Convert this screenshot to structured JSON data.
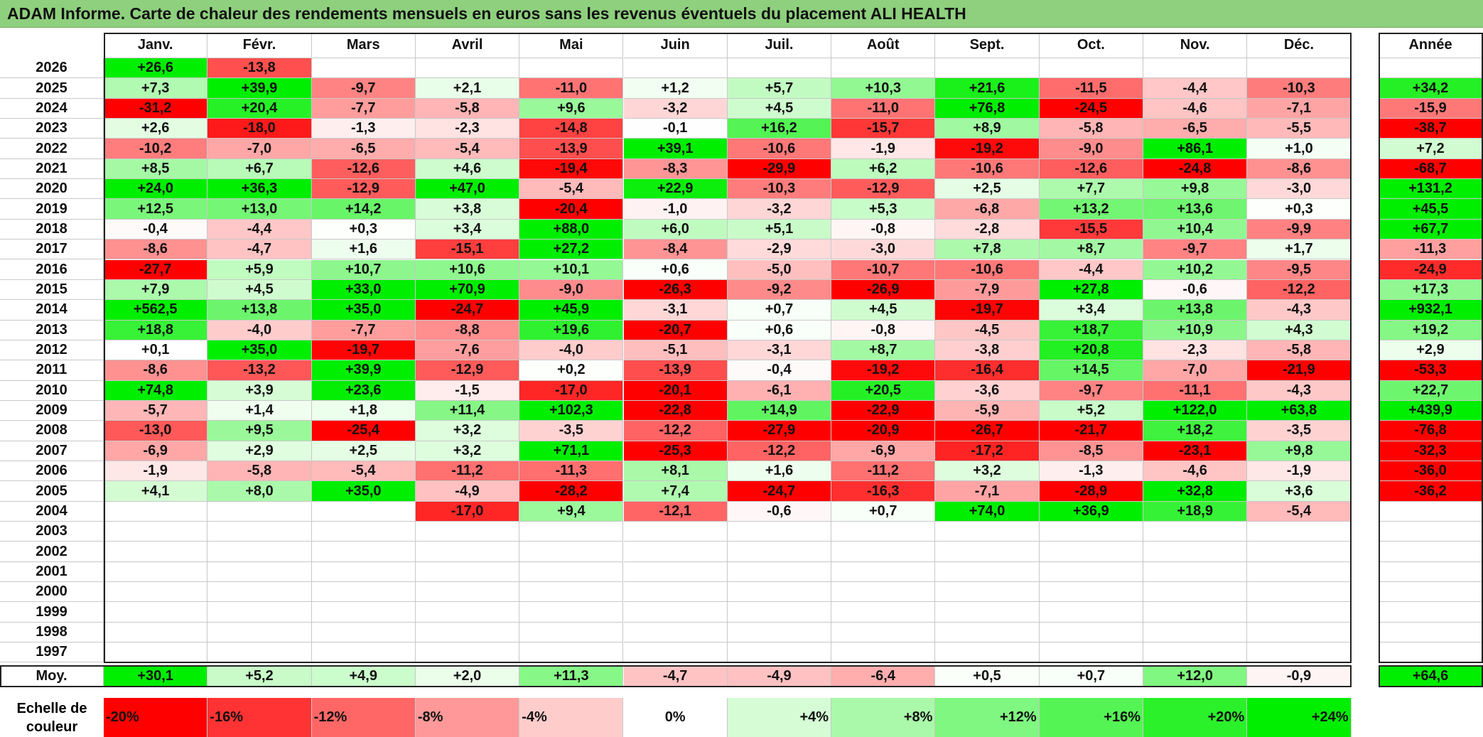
{
  "title": "ADAM Informe. Carte de chaleur des rendements mensuels en euros sans les revenus éventuels du placement ALI HEALTH",
  "chart_data": {
    "type": "heatmap",
    "columns": [
      "Janv.",
      "Févr.",
      "Mars",
      "Avril",
      "Mai",
      "Juin",
      "Juil.",
      "Août",
      "Sept.",
      "Oct.",
      "Nov.",
      "Déc."
    ],
    "annual_header": "Année",
    "rows": [
      {
        "year": "2026",
        "values": [
          "+26,6",
          "-13,8",
          "",
          "",
          "",
          "",
          "",
          "",
          "",
          "",
          "",
          ""
        ],
        "annual": ""
      },
      {
        "year": "2025",
        "values": [
          "+7,3",
          "+39,9",
          "-9,7",
          "+2,1",
          "-11,0",
          "+1,2",
          "+5,7",
          "+10,3",
          "+21,6",
          "-11,5",
          "-4,4",
          "-10,3"
        ],
        "annual": "+34,2"
      },
      {
        "year": "2024",
        "values": [
          "-31,2",
          "+20,4",
          "-7,7",
          "-5,8",
          "+9,6",
          "-3,2",
          "+4,5",
          "-11,0",
          "+76,8",
          "-24,5",
          "-4,6",
          "-7,1"
        ],
        "annual": "-15,9"
      },
      {
        "year": "2023",
        "values": [
          "+2,6",
          "-18,0",
          "-1,3",
          "-2,3",
          "-14,8",
          "-0,1",
          "+16,2",
          "-15,7",
          "+8,9",
          "-5,8",
          "-6,5",
          "-5,5"
        ],
        "annual": "-38,7"
      },
      {
        "year": "2022",
        "values": [
          "-10,2",
          "-7,0",
          "-6,5",
          "-5,4",
          "-13,9",
          "+39,1",
          "-10,6",
          "-1,9",
          "-19,2",
          "-9,0",
          "+86,1",
          "+1,0"
        ],
        "annual": "+7,2"
      },
      {
        "year": "2021",
        "values": [
          "+8,5",
          "+6,7",
          "-12,6",
          "+4,6",
          "-19,4",
          "-8,3",
          "-29,9",
          "+6,2",
          "-10,6",
          "-12,6",
          "-24,8",
          "-8,6"
        ],
        "annual": "-68,7"
      },
      {
        "year": "2020",
        "values": [
          "+24,0",
          "+36,3",
          "-12,9",
          "+47,0",
          "-5,4",
          "+22,9",
          "-10,3",
          "-12,9",
          "+2,5",
          "+7,7",
          "+9,8",
          "-3,0"
        ],
        "annual": "+131,2"
      },
      {
        "year": "2019",
        "values": [
          "+12,5",
          "+13,0",
          "+14,2",
          "+3,8",
          "-20,4",
          "-1,0",
          "-3,2",
          "+5,3",
          "-6,8",
          "+13,2",
          "+13,6",
          "+0,3"
        ],
        "annual": "+45,5"
      },
      {
        "year": "2018",
        "values": [
          "-0,4",
          "-4,4",
          "+0,3",
          "+3,4",
          "+88,0",
          "+6,0",
          "+5,1",
          "-0,8",
          "-2,8",
          "-15,5",
          "+10,4",
          "-9,9"
        ],
        "annual": "+67,7"
      },
      {
        "year": "2017",
        "values": [
          "-8,6",
          "-4,7",
          "+1,6",
          "-15,1",
          "+27,2",
          "-8,4",
          "-2,9",
          "-3,0",
          "+7,8",
          "+8,7",
          "-9,7",
          "+1,7"
        ],
        "annual": "-11,3"
      },
      {
        "year": "2016",
        "values": [
          "-27,7",
          "+5,9",
          "+10,7",
          "+10,6",
          "+10,1",
          "+0,6",
          "-5,0",
          "-10,7",
          "-10,6",
          "-4,4",
          "+10,2",
          "-9,5"
        ],
        "annual": "-24,9"
      },
      {
        "year": "2015",
        "values": [
          "+7,9",
          "+4,5",
          "+33,0",
          "+70,9",
          "-9,0",
          "-26,3",
          "-9,2",
          "-26,9",
          "-7,9",
          "+27,8",
          "-0,6",
          "-12,2"
        ],
        "annual": "+17,3"
      },
      {
        "year": "2014",
        "values": [
          "+562,5",
          "+13,8",
          "+35,0",
          "-24,7",
          "+45,9",
          "-3,1",
          "+0,7",
          "+4,5",
          "-19,7",
          "+3,4",
          "+13,8",
          "-4,3"
        ],
        "annual": "+932,1"
      },
      {
        "year": "2013",
        "values": [
          "+18,8",
          "-4,0",
          "-7,7",
          "-8,8",
          "+19,6",
          "-20,7",
          "+0,6",
          "-0,8",
          "-4,5",
          "+18,7",
          "+10,9",
          "+4,3"
        ],
        "annual": "+19,2"
      },
      {
        "year": "2012",
        "values": [
          "+0,1",
          "+35,0",
          "-19,7",
          "-7,6",
          "-4,0",
          "-5,1",
          "-3,1",
          "+8,7",
          "-3,8",
          "+20,8",
          "-2,3",
          "-5,8"
        ],
        "annual": "+2,9"
      },
      {
        "year": "2011",
        "values": [
          "-8,6",
          "-13,2",
          "+39,9",
          "-12,9",
          "+0,2",
          "-13,9",
          "-0,4",
          "-19,2",
          "-16,4",
          "+14,5",
          "-7,0",
          "-21,9"
        ],
        "annual": "-53,3"
      },
      {
        "year": "2010",
        "values": [
          "+74,8",
          "+3,9",
          "+23,6",
          "-1,5",
          "-17,0",
          "-20,1",
          "-6,1",
          "+20,5",
          "-3,6",
          "-9,7",
          "-11,1",
          "-4,3"
        ],
        "annual": "+22,7"
      },
      {
        "year": "2009",
        "values": [
          "-5,7",
          "+1,4",
          "+1,8",
          "+11,4",
          "+102,3",
          "-22,8",
          "+14,9",
          "-22,9",
          "-5,9",
          "+5,2",
          "+122,0",
          "+63,8"
        ],
        "annual": "+439,9"
      },
      {
        "year": "2008",
        "values": [
          "-13,0",
          "+9,5",
          "-25,4",
          "+3,2",
          "-3,5",
          "-12,2",
          "-27,9",
          "-20,9",
          "-26,7",
          "-21,7",
          "+18,2",
          "-3,5"
        ],
        "annual": "-76,8"
      },
      {
        "year": "2007",
        "values": [
          "-6,9",
          "+2,9",
          "+2,5",
          "+3,2",
          "+71,1",
          "-25,3",
          "-12,2",
          "-6,9",
          "-17,2",
          "-8,5",
          "-23,1",
          "+9,8"
        ],
        "annual": "-32,3"
      },
      {
        "year": "2006",
        "values": [
          "-1,9",
          "-5,8",
          "-5,4",
          "-11,2",
          "-11,3",
          "+8,1",
          "+1,6",
          "-11,2",
          "+3,2",
          "-1,3",
          "-4,6",
          "-1,9"
        ],
        "annual": "-36,0"
      },
      {
        "year": "2005",
        "values": [
          "+4,1",
          "+8,0",
          "+35,0",
          "-4,9",
          "-28,2",
          "+7,4",
          "-24,7",
          "-16,3",
          "-7,1",
          "-28,9",
          "+32,8",
          "+3,6"
        ],
        "annual": "-36,2"
      },
      {
        "year": "2004",
        "values": [
          "",
          "",
          "",
          "-17,0",
          "+9,4",
          "-12,1",
          "-0,6",
          "+0,7",
          "+74,0",
          "+36,9",
          "+18,9",
          "-5,4"
        ],
        "annual": ""
      },
      {
        "year": "2003",
        "values": [
          "",
          "",
          "",
          "",
          "",
          "",
          "",
          "",
          "",
          "",
          "",
          ""
        ],
        "annual": ""
      },
      {
        "year": "2002",
        "values": [
          "",
          "",
          "",
          "",
          "",
          "",
          "",
          "",
          "",
          "",
          "",
          ""
        ],
        "annual": ""
      },
      {
        "year": "2001",
        "values": [
          "",
          "",
          "",
          "",
          "",
          "",
          "",
          "",
          "",
          "",
          "",
          ""
        ],
        "annual": ""
      },
      {
        "year": "2000",
        "values": [
          "",
          "",
          "",
          "",
          "",
          "",
          "",
          "",
          "",
          "",
          "",
          ""
        ],
        "annual": ""
      },
      {
        "year": "1999",
        "values": [
          "",
          "",
          "",
          "",
          "",
          "",
          "",
          "",
          "",
          "",
          "",
          ""
        ],
        "annual": ""
      },
      {
        "year": "1998",
        "values": [
          "",
          "",
          "",
          "",
          "",
          "",
          "",
          "",
          "",
          "",
          "",
          ""
        ],
        "annual": ""
      },
      {
        "year": "1997",
        "values": [
          "",
          "",
          "",
          "",
          "",
          "",
          "",
          "",
          "",
          "",
          "",
          ""
        ],
        "annual": ""
      }
    ],
    "average": {
      "label": "Moy.",
      "values": [
        "+30,1",
        "+5,2",
        "+4,9",
        "+2,0",
        "+11,3",
        "-4,7",
        "-4,9",
        "-6,4",
        "+0,5",
        "+0,7",
        "+12,0",
        "-0,9"
      ],
      "annual": "+64,6"
    },
    "color_scale": {
      "label": "Echelle de\ncouleur",
      "stops": [
        "-20%",
        "-16%",
        "-12%",
        "-8%",
        "-4%",
        "0%",
        "+4%",
        "+8%",
        "+12%",
        "+16%",
        "+20%",
        "+24%"
      ],
      "stop_values": [
        -20,
        -16,
        -12,
        -8,
        -4,
        0,
        4,
        8,
        12,
        16,
        20,
        24
      ],
      "negative_color": "#ff0000",
      "neutral_color": "#ffffff",
      "positive_color": "#00ee00"
    }
  }
}
